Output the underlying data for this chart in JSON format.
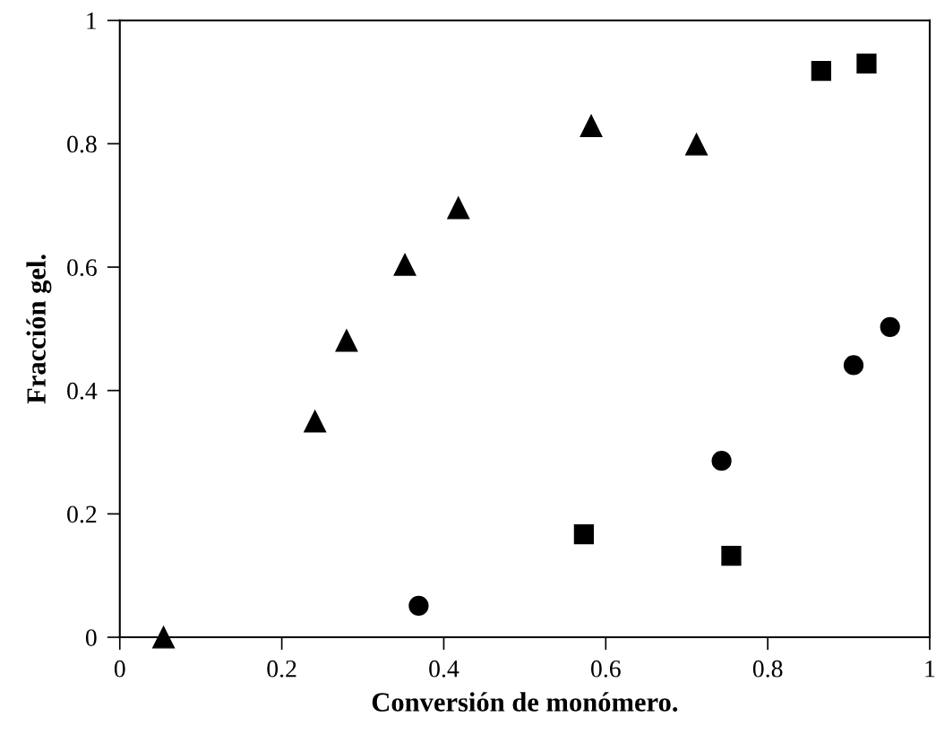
{
  "chart_data": {
    "type": "scatter",
    "xlabel": "Conversión de monómero.",
    "ylabel": "Fracción gel.",
    "xlim": [
      0,
      1
    ],
    "xticks": [
      0,
      0.2,
      0.4,
      0.6,
      0.8,
      1
    ],
    "ylim": [
      0,
      1
    ],
    "yticks": [
      0,
      0.2,
      0.4,
      0.6,
      0.8,
      1
    ],
    "grid": false,
    "series": [
      {
        "color": "#000000",
        "marker": "triangle",
        "x": [
          0.054,
          0.241,
          0.28,
          0.352,
          0.418,
          0.582,
          0.712
        ],
        "values": [
          0.0,
          0.35,
          0.481,
          0.604,
          0.696,
          0.829,
          0.799
        ]
      },
      {
        "color": "#000000",
        "marker": "square",
        "x": [
          0.573,
          0.755,
          0.866,
          0.922
        ],
        "values": [
          0.167,
          0.132,
          0.918,
          0.93
        ]
      },
      {
        "color": "#000000",
        "marker": "circle",
        "x": [
          0.369,
          0.743,
          0.906,
          0.951
        ],
        "values": [
          0.051,
          0.286,
          0.441,
          0.503
        ]
      }
    ]
  }
}
